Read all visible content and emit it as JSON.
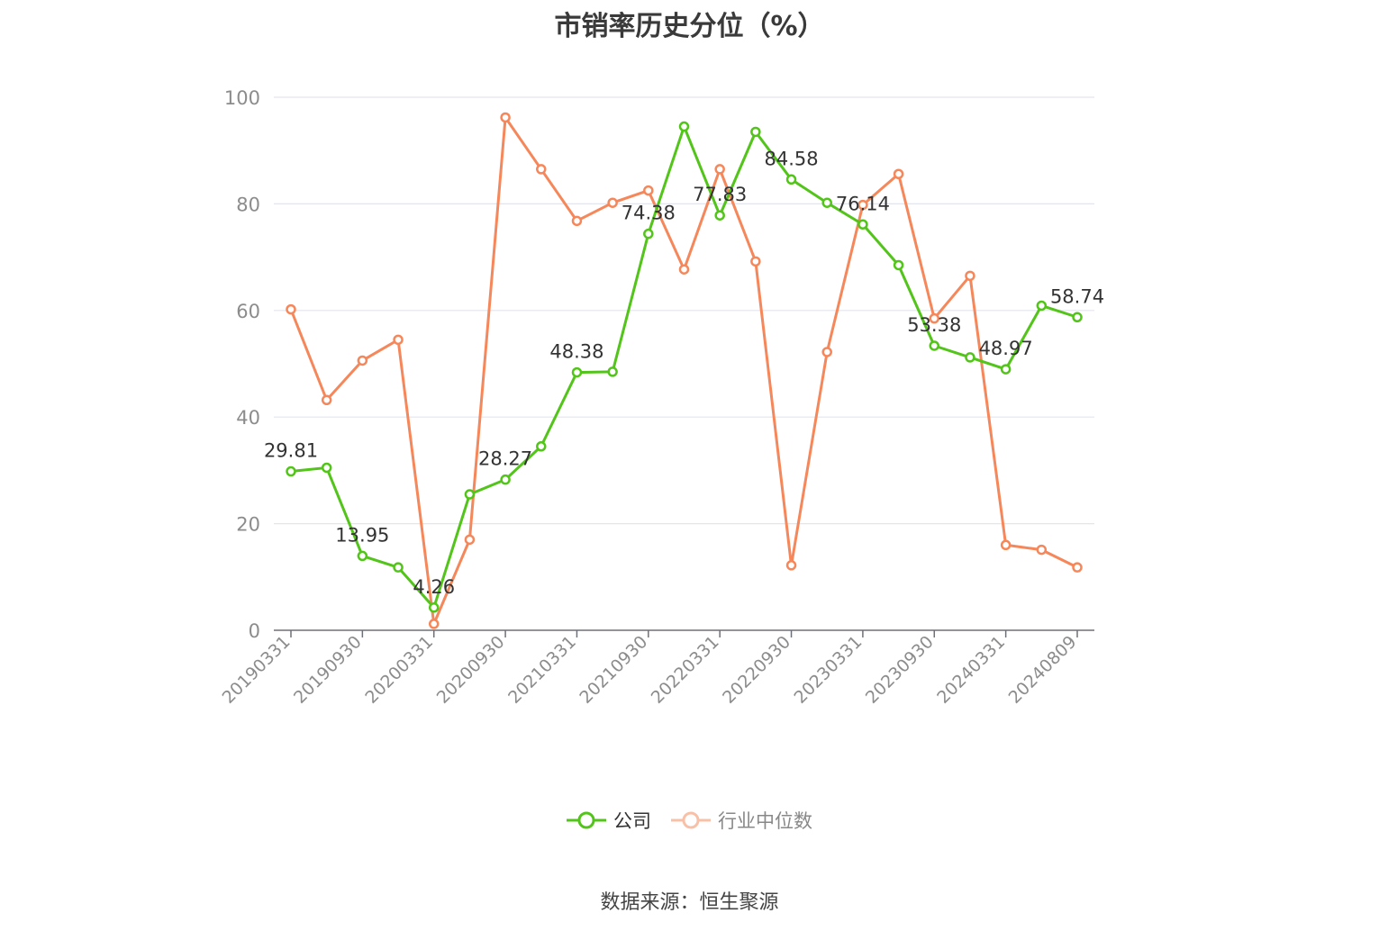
{
  "title": "市销率历史分位（%）",
  "source": "数据来源：恒生聚源",
  "chart_data": {
    "type": "line",
    "ylim": [
      0,
      100
    ],
    "yticks": [
      0,
      20,
      40,
      60,
      80,
      100
    ],
    "x_tick_labels": [
      "20190331",
      "20190930",
      "20200331",
      "20200930",
      "20210331",
      "20210930",
      "20220331",
      "20220930",
      "20230331",
      "20230930",
      "20240331",
      "20240809"
    ],
    "x": [
      "20190331",
      "20190630",
      "20190930",
      "20191231",
      "20200331",
      "20200630",
      "20200930",
      "20201231",
      "20210331",
      "20210630",
      "20210930",
      "20211231",
      "20220331",
      "20220630",
      "20220930",
      "20221231",
      "20230331",
      "20230630",
      "20230930",
      "20231231",
      "20240331",
      "20240630",
      "20240809"
    ],
    "series": [
      {
        "name": "公司",
        "color": "#52c41a",
        "values": [
          29.81,
          30.5,
          13.95,
          11.8,
          4.26,
          25.5,
          28.27,
          34.5,
          48.38,
          48.5,
          74.38,
          94.5,
          77.83,
          93.5,
          84.58,
          80.2,
          76.14,
          68.5,
          53.38,
          51.2,
          48.97,
          60.9,
          58.74
        ],
        "labels": [
          "29.81",
          "",
          "13.95",
          "",
          "4.26",
          "",
          "28.27",
          "",
          "48.38",
          "",
          "74.38",
          "",
          "77.83",
          "",
          "84.58",
          "",
          "76.14",
          "",
          "53.38",
          "",
          "48.97",
          "",
          "58.74"
        ]
      },
      {
        "name": "行业中位数",
        "color": "#f5875a",
        "values": [
          60.2,
          43.2,
          50.6,
          54.5,
          1.2,
          17.0,
          96.2,
          86.5,
          76.8,
          80.2,
          82.5,
          67.7,
          86.5,
          69.2,
          12.2,
          52.2,
          79.8,
          85.6,
          58.5,
          66.5,
          16.0,
          15.1,
          11.8
        ],
        "labels": []
      }
    ],
    "grid": true,
    "legend_position": "bottom-center"
  }
}
